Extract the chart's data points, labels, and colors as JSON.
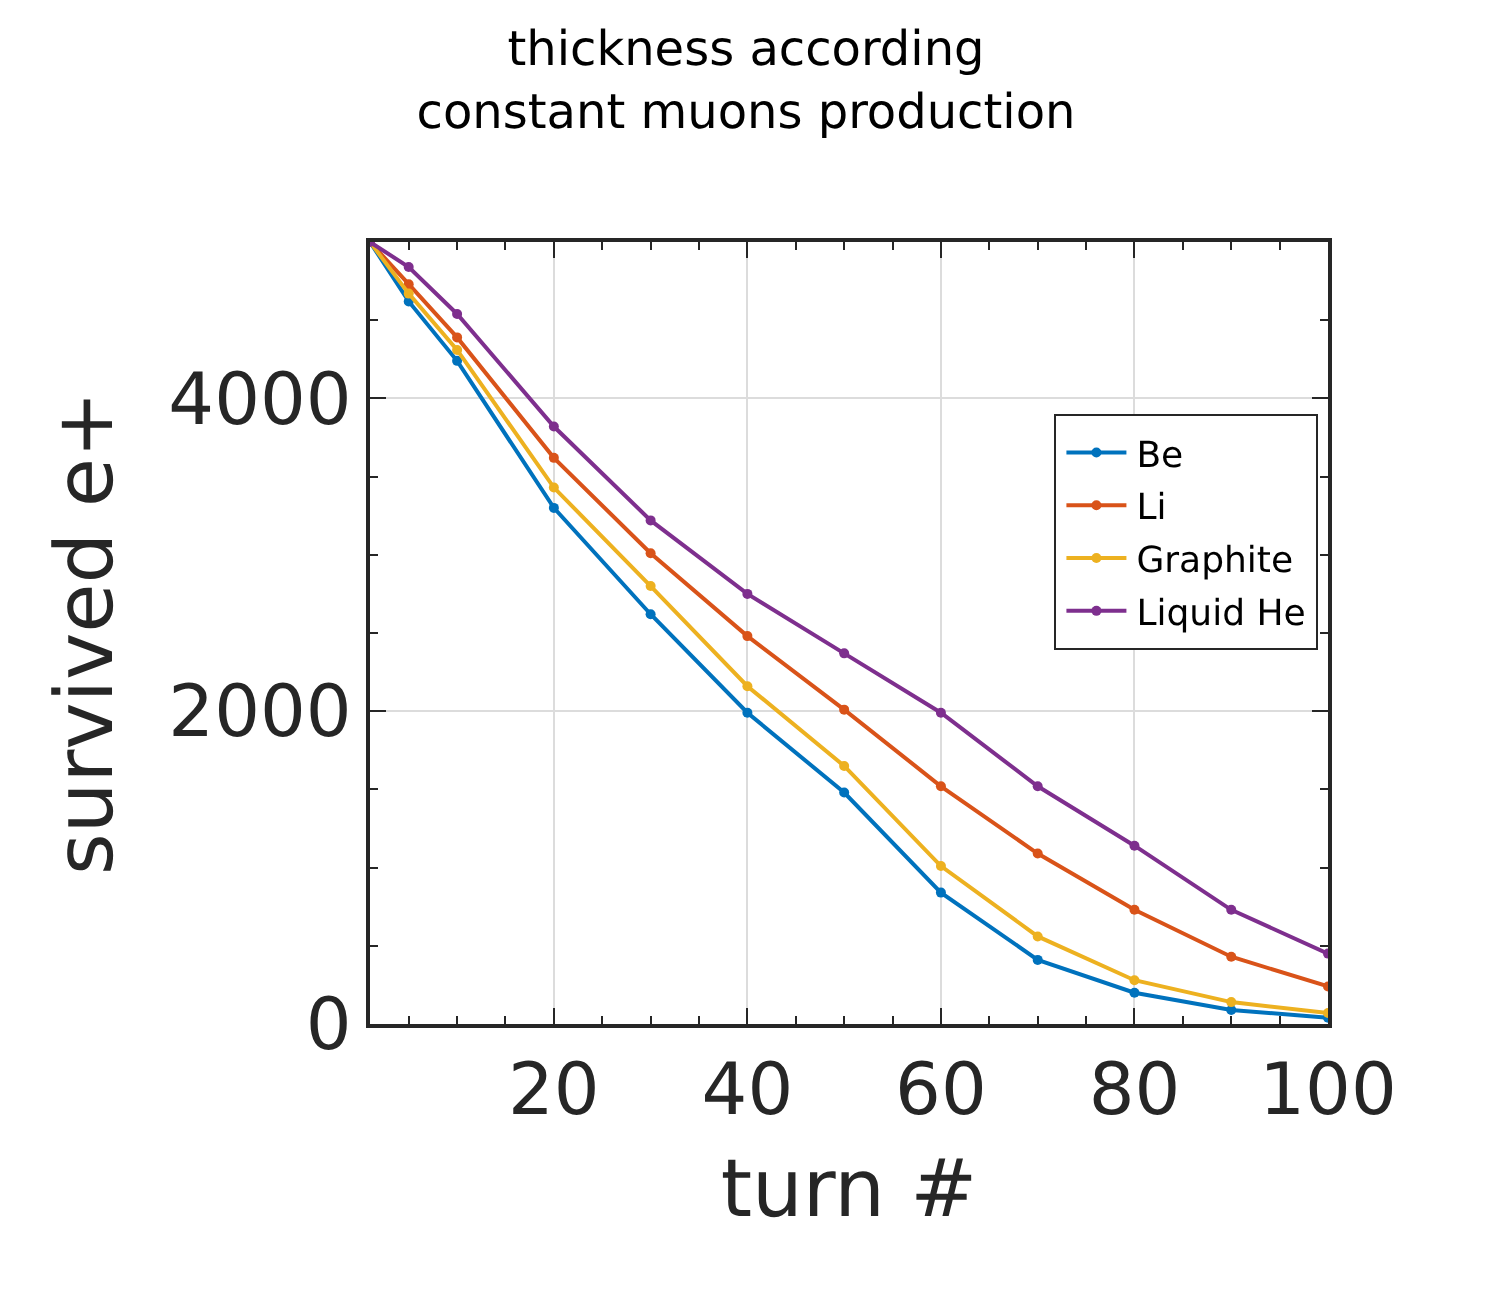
{
  "chart_data": {
    "type": "line",
    "title": "thickness according\nconstant muons production",
    "xlabel": "turn #",
    "ylabel": "survived e+",
    "x": [
      1,
      5,
      10,
      20,
      30,
      40,
      50,
      60,
      70,
      80,
      90,
      100
    ],
    "series": [
      {
        "name": "Be",
        "color": "#0072bd",
        "values": [
          5000,
          4620,
          4240,
          3300,
          2620,
          1990,
          1480,
          840,
          410,
          200,
          90,
          40
        ]
      },
      {
        "name": "Li",
        "color": "#d95319",
        "values": [
          5000,
          4730,
          4390,
          3620,
          3010,
          2480,
          2010,
          1520,
          1090,
          730,
          430,
          240
        ]
      },
      {
        "name": "Graphite",
        "color": "#edb120",
        "values": [
          5000,
          4670,
          4310,
          3430,
          2800,
          2160,
          1650,
          1010,
          560,
          280,
          140,
          70
        ]
      },
      {
        "name": "Liquid He",
        "color": "#7e2f8e",
        "values": [
          5000,
          4840,
          4540,
          3820,
          3220,
          2750,
          2370,
          1990,
          1520,
          1140,
          730,
          450
        ]
      }
    ],
    "xlim": [
      1,
      100
    ],
    "xticks": [
      20,
      40,
      60,
      80,
      100
    ],
    "ylim": [
      0,
      5000
    ],
    "yticks": [
      0,
      2000,
      4000
    ],
    "grid": true,
    "legend": "top right",
    "marker": "circle",
    "line_style": "solid"
  }
}
